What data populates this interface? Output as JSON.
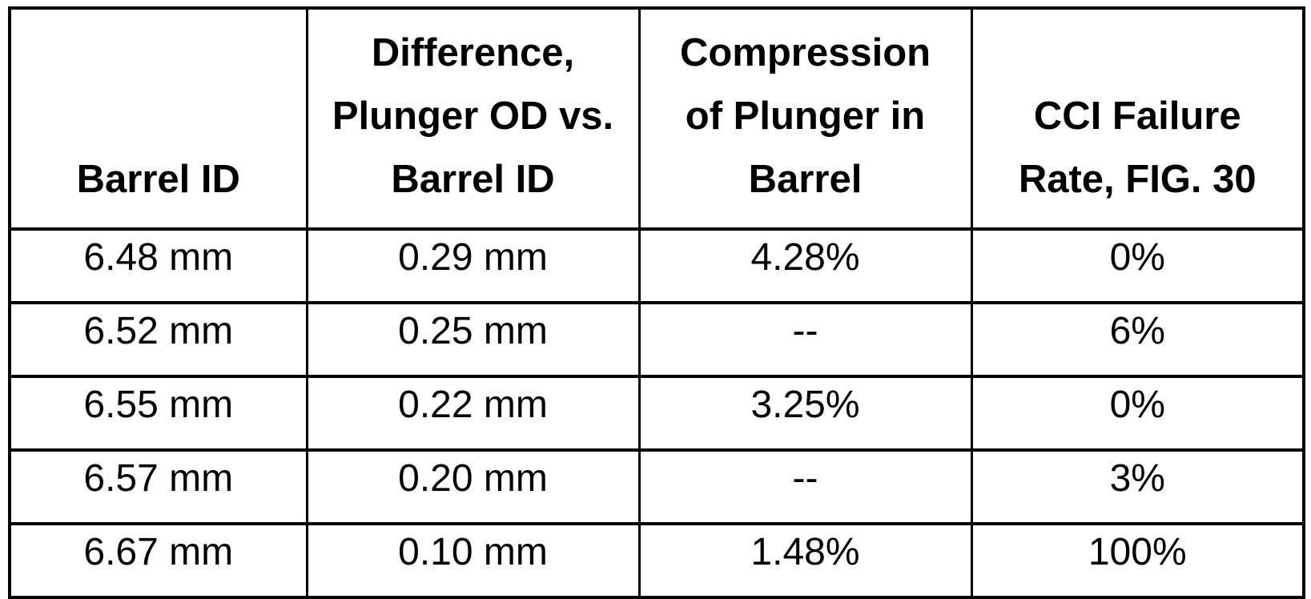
{
  "table": {
    "title": "plunger-barrel-compression-failure-table",
    "columns": [
      {
        "id": "barrel-id",
        "label": "Barrel ID"
      },
      {
        "id": "difference-plunger-od-vs-barrel-id",
        "label": "Difference,\nPlunger OD vs.\nBarrel ID"
      },
      {
        "id": "compression-of-plunger-in-barrel",
        "label": "Compression\nof Plunger in\nBarrel"
      },
      {
        "id": "cci-failure-rate",
        "label": "CCI Failure\nRate, FIG. 30"
      }
    ],
    "rows": [
      [
        "6.48 mm",
        "0.29 mm",
        "4.28%",
        "0%"
      ],
      [
        "6.52 mm",
        "0.25 mm",
        "--",
        "6%"
      ],
      [
        "6.55 mm",
        "0.22 mm",
        "3.25%",
        "0%"
      ],
      [
        "6.57 mm",
        "0.20 mm",
        "--",
        "3%"
      ],
      [
        "6.67 mm",
        "0.10 mm",
        "1.48%",
        "100%"
      ]
    ],
    "colors": {
      "text": "#000000",
      "background": "#ffffff",
      "border": "#000000"
    }
  }
}
